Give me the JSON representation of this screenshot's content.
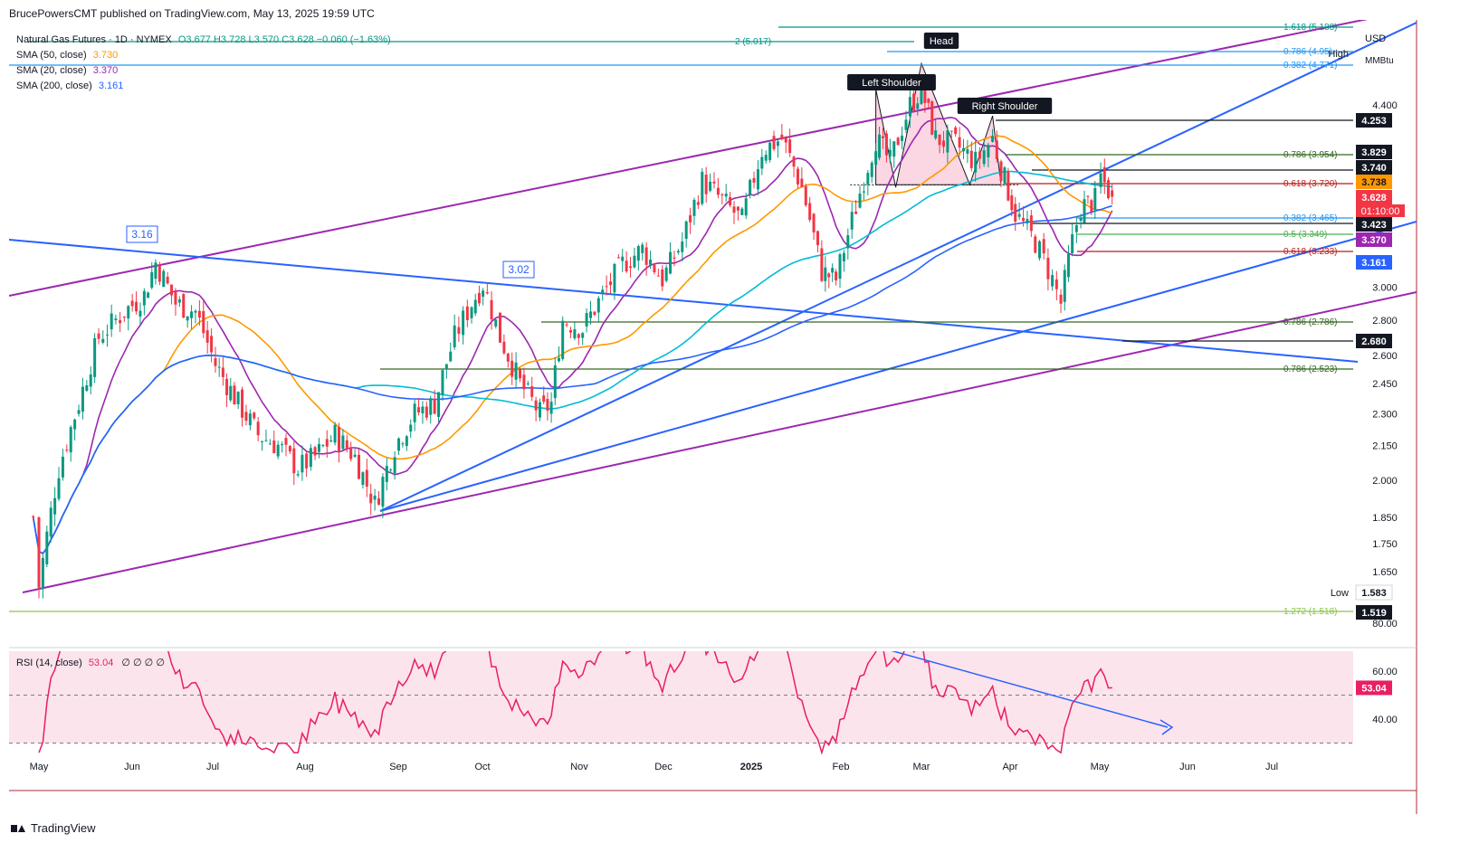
{
  "header": {
    "published": "BrucePowersCMT published on TradingView.com, May 13, 2025 19:59 UTC"
  },
  "legend": {
    "symbol": "Natural Gas Futures · 1D · NYMEX",
    "ohlc": "O3.677  H3.728  L3.570  C3.628  −0.060 (−1.63%)",
    "sma50_label": "SMA (50, close)",
    "sma50_value": "3.730",
    "sma20_label": "SMA (20, close)",
    "sma20_value": "3.370",
    "sma200_label": "SMA (200, close)",
    "sma200_value": "3.161"
  },
  "rsi_legend": {
    "label": "RSI (14, close)",
    "value": "53.04",
    "extra": "∅ ∅ ∅ ∅"
  },
  "footer": {
    "brand": "TradingView"
  },
  "colors": {
    "up": "#089981",
    "down": "#f23645",
    "sma20": "#9c27b0",
    "sma50": "#ff9800",
    "sma200": "#2962ff",
    "sma100": "#00bcd4",
    "trend_blue": "#2962ff",
    "channel": "#9c27b0",
    "rsi": "#e91e63",
    "rsi_bg": "#fce4ec",
    "fib_green": "#33691e",
    "fib_red": "#b71c1c",
    "fib_blue": "#2196f3"
  },
  "chart_data": {
    "type": "candlestick",
    "unit": "MMBtu",
    "currency": "USD",
    "x_ticks": [
      "May",
      "Jun",
      "Jul",
      "Aug",
      "Sep",
      "Oct",
      "Nov",
      "Dec",
      "2025",
      "Feb",
      "Mar",
      "Apr",
      "May",
      "Jun",
      "Jul"
    ],
    "y_ticks": [
      "4.400",
      "3.000",
      "2.800",
      "2.600",
      "2.450",
      "2.300",
      "2.150",
      "2.000",
      "1.850",
      "1.750",
      "1.650"
    ],
    "y_scale": "log",
    "ohlc_current": {
      "open": 3.677,
      "high": 3.728,
      "low": 3.57,
      "close": 3.628
    },
    "price_path": [
      [
        "2024-04-29",
        1.85
      ],
      [
        "2024-05-01",
        1.6
      ],
      [
        "2024-05-08",
        2.05
      ],
      [
        "2024-05-15",
        2.35
      ],
      [
        "2024-05-22",
        2.7
      ],
      [
        "2024-05-31",
        2.85
      ],
      [
        "2024-06-07",
        2.95
      ],
      [
        "2024-06-11",
        3.16
      ],
      [
        "2024-06-18",
        2.9
      ],
      [
        "2024-06-25",
        2.85
      ],
      [
        "2024-07-02",
        2.55
      ],
      [
        "2024-07-10",
        2.35
      ],
      [
        "2024-07-17",
        2.2
      ],
      [
        "2024-07-24",
        2.15
      ],
      [
        "2024-07-31",
        2.05
      ],
      [
        "2024-08-06",
        2.1
      ],
      [
        "2024-08-13",
        2.2
      ],
      [
        "2024-08-20",
        2.1
      ],
      [
        "2024-08-27",
        1.9
      ],
      [
        "2024-09-03",
        2.15
      ],
      [
        "2024-09-10",
        2.3
      ],
      [
        "2024-09-17",
        2.35
      ],
      [
        "2024-09-24",
        2.7
      ],
      [
        "2024-09-30",
        2.9
      ],
      [
        "2024-10-04",
        3.02
      ],
      [
        "2024-10-10",
        2.7
      ],
      [
        "2024-10-17",
        2.45
      ],
      [
        "2024-10-24",
        2.3
      ],
      [
        "2024-10-28",
        2.35
      ],
      [
        "2024-11-01",
        2.8
      ],
      [
        "2024-11-08",
        2.75
      ],
      [
        "2024-11-15",
        2.95
      ],
      [
        "2024-11-22",
        3.15
      ],
      [
        "2024-11-29",
        3.25
      ],
      [
        "2024-12-06",
        3.05
      ],
      [
        "2024-12-13",
        3.3
      ],
      [
        "2024-12-20",
        3.75
      ],
      [
        "2024-12-27",
        3.6
      ],
      [
        "2025-01-03",
        3.45
      ],
      [
        "2025-01-10",
        4.0
      ],
      [
        "2025-01-17",
        4.1
      ],
      [
        "2025-01-24",
        3.7
      ],
      [
        "2025-01-31",
        3.1
      ],
      [
        "2025-02-05",
        3.05
      ],
      [
        "2025-02-12",
        3.55
      ],
      [
        "2025-02-19",
        4.1
      ],
      [
        "2025-02-24",
        3.9
      ],
      [
        "2025-03-03",
        4.4
      ],
      [
        "2025-03-07",
        4.55
      ],
      [
        "2025-03-12",
        4.1
      ],
      [
        "2025-03-19",
        4.05
      ],
      [
        "2025-03-26",
        3.9
      ],
      [
        "2025-04-01",
        4.1
      ],
      [
        "2025-04-04",
        3.85
      ],
      [
        "2025-04-09",
        3.5
      ],
      [
        "2025-04-16",
        3.3
      ],
      [
        "2025-04-22",
        3.05
      ],
      [
        "2025-04-25",
        2.9
      ],
      [
        "2025-04-29",
        3.3
      ],
      [
        "2025-05-02",
        3.55
      ],
      [
        "2025-05-07",
        3.6
      ],
      [
        "2025-05-09",
        3.78
      ],
      [
        "2025-05-13",
        3.628
      ]
    ],
    "sma": {
      "sma20": 3.37,
      "sma50": 3.73,
      "sma200": 3.161
    },
    "price_labels": [
      "4.253",
      "3.829",
      "3.740",
      "3.738",
      "3.628",
      "3.423",
      "3.370",
      "3.161",
      "2.680",
      "1.583",
      "1.519"
    ],
    "countdown": "01:10:00",
    "fib_levels": [
      {
        "label": "1.618 (5.188)"
      },
      {
        "label": "2 (5.017)"
      },
      {
        "label": "0.786 (4.95)"
      },
      {
        "label": "0.382 (4.771)"
      },
      {
        "label": "0.786 (3.954)"
      },
      {
        "label": "0.618 (3.720)"
      },
      {
        "label": "0.382 (3.465)"
      },
      {
        "label": "0.5 (3.349)"
      },
      {
        "label": "0.618 (3.233)"
      },
      {
        "label": "0.786 (2.786)"
      },
      {
        "label": "0.786 (2.523)"
      },
      {
        "label": "1.272 (1.518)"
      }
    ],
    "annotations": [
      "Head",
      "Left Shoulder",
      "Right Shoulder",
      "3.16",
      "3.02",
      "High",
      "Low"
    ],
    "rsi": {
      "period": 14,
      "value": 53.04,
      "levels": [
        70,
        50,
        30
      ],
      "ticks": [
        "80.00",
        "60.00",
        "40.00"
      ]
    }
  }
}
